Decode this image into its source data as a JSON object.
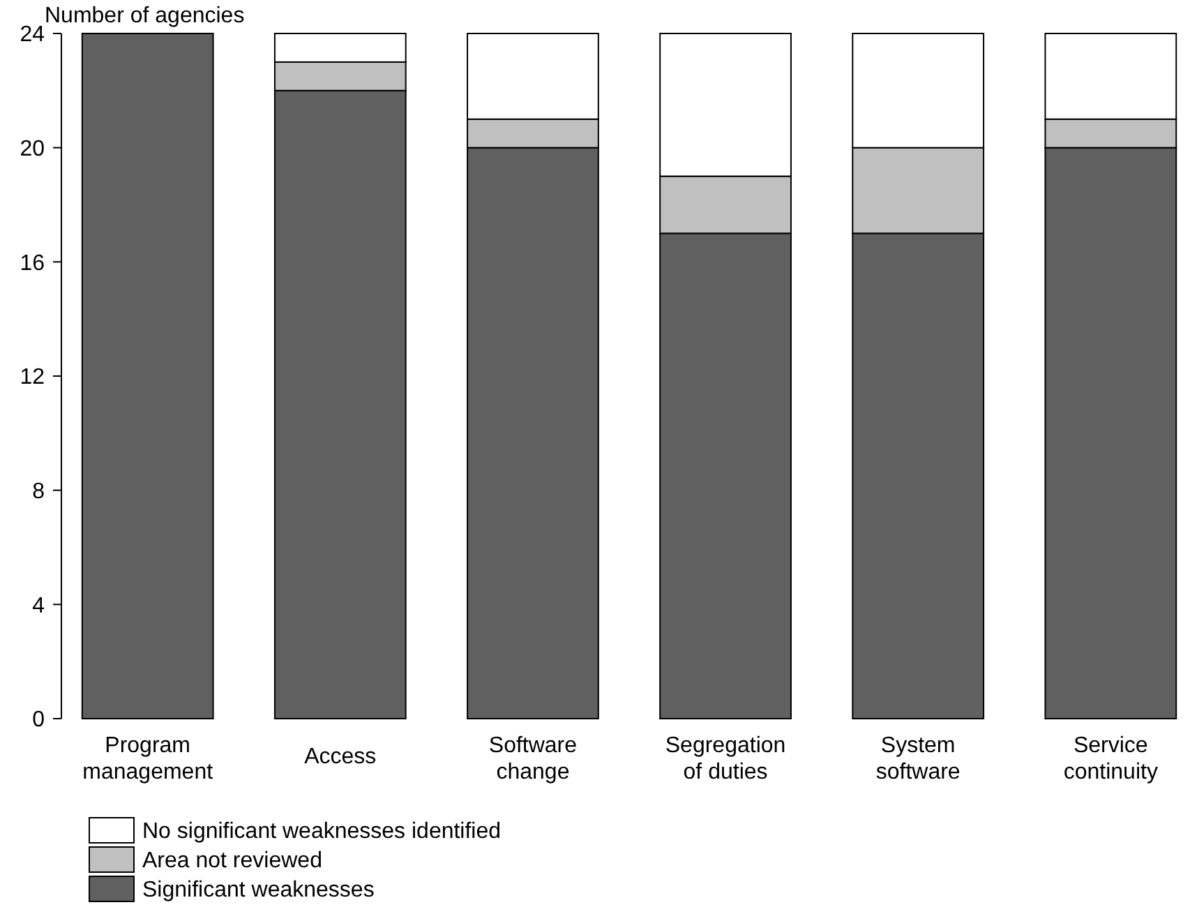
{
  "chart_data": {
    "type": "bar",
    "stacked": true,
    "ylabel": "Number of agencies",
    "categories": [
      "Program management",
      "Access",
      "Software change",
      "Segregation of duties",
      "System software",
      "Service continuity"
    ],
    "series": [
      {
        "name": "Significant weaknesses",
        "color": "#606060",
        "values": [
          24,
          22,
          20,
          17,
          17,
          20
        ]
      },
      {
        "name": "Area not reviewed",
        "color": "#c0c0c0",
        "values": [
          0,
          1,
          1,
          2,
          3,
          1
        ]
      },
      {
        "name": "No significant weaknesses identified",
        "color": "#ffffff",
        "values": [
          0,
          1,
          3,
          5,
          4,
          3
        ]
      }
    ],
    "ylim": [
      0,
      24
    ],
    "yticks": [
      0,
      4,
      8,
      12,
      16,
      20,
      24
    ],
    "grid": false,
    "legend": "bottom left"
  }
}
